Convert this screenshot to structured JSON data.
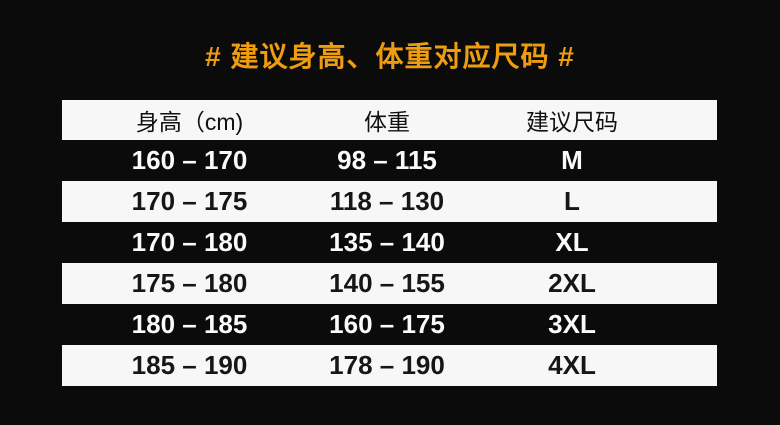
{
  "page": {
    "background_color": "#0b0b0b"
  },
  "title": {
    "text": "# 建议身高、体重对应尺码 #",
    "color": "#EF9D10"
  },
  "table": {
    "columns": [
      "身高（cm)",
      "体重",
      "建议尺码"
    ],
    "rows": [
      {
        "height_range": "160 – 170",
        "weight_range": "98 – 115",
        "size": "M"
      },
      {
        "height_range": "170 – 175",
        "weight_range": "118 – 130",
        "size": "L"
      },
      {
        "height_range": "170 – 180",
        "weight_range": "135 – 140",
        "size": "XL"
      },
      {
        "height_range": "175 – 180",
        "weight_range": "140 – 155",
        "size": "2XL"
      },
      {
        "height_range": "180 – 185",
        "weight_range": "160 – 175",
        "size": "3XL"
      },
      {
        "height_range": "185 – 190",
        "weight_range": "178 – 190",
        "size": "4XL"
      }
    ],
    "colors": {
      "light_row_bg": "#f7f7f7",
      "light_row_text": "#161616",
      "dark_row_bg": "#0b0b0b",
      "dark_row_text": "#fafafa"
    }
  },
  "chart_data": {
    "type": "table",
    "title": "# 建议身高、体重对应尺码 #",
    "columns": [
      "身高（cm)",
      "体重",
      "建议尺码"
    ],
    "rows": [
      [
        "160 – 170",
        "98 – 115",
        "M"
      ],
      [
        "170 – 175",
        "118 – 130",
        "L"
      ],
      [
        "170 – 180",
        "135 – 140",
        "XL"
      ],
      [
        "175 – 180",
        "140 – 155",
        "2XL"
      ],
      [
        "180 – 185",
        "160 – 175",
        "3XL"
      ],
      [
        "185 – 190",
        "178 – 190",
        "4XL"
      ]
    ],
    "layout": {
      "background": "#0b0b0b",
      "row_style": "alternating black/white bars",
      "title_color": "#EF9D10"
    }
  }
}
